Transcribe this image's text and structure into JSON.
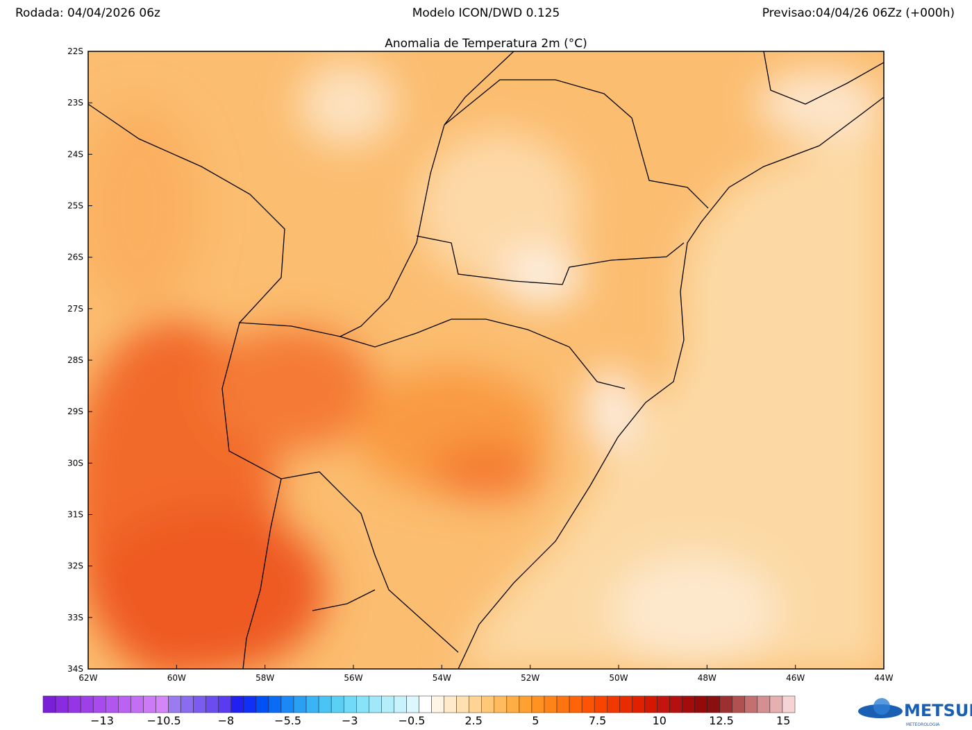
{
  "header": {
    "run": "Rodada: 04/04/2026 06z",
    "model": "Modelo ICON/DWD 0.125",
    "forecast": "Previsao:04/04/26 06Zz (+000h)"
  },
  "map": {
    "title": "Anomalia de Temperatura 2m (°C)",
    "lat_labels": [
      "22S",
      "23S",
      "24S",
      "25S",
      "26S",
      "27S",
      "28S",
      "29S",
      "30S",
      "31S",
      "32S",
      "33S",
      "34S"
    ],
    "lon_labels": [
      "62W",
      "60W",
      "58W",
      "56W",
      "54W",
      "52W",
      "50W",
      "48W",
      "46W",
      "44W"
    ]
  },
  "colorbar": {
    "colors": [
      "#7a1fd8",
      "#8a2be2",
      "#9435e6",
      "#9e40ea",
      "#a84bee",
      "#b256f1",
      "#bb62f3",
      "#c46ef5",
      "#cc7af7",
      "#d486f8",
      "#9a7cf0",
      "#8a6cf0",
      "#7a5cf0",
      "#6a4cf0",
      "#5a3cf0",
      "#2020f0",
      "#1030f5",
      "#0050f5",
      "#0a6cf5",
      "#1a88f5",
      "#2aa0f5",
      "#3ab4f5",
      "#4ac4f5",
      "#5ad0f5",
      "#70daf8",
      "#88e2f8",
      "#a0e8fa",
      "#b4eefb",
      "#c8f3fc",
      "#dcf7fd",
      "#ffffff",
      "#fff5e6",
      "#ffebcc",
      "#ffe0b0",
      "#ffd494",
      "#ffc878",
      "#ffbb5c",
      "#ffae44",
      "#ffa030",
      "#ff9220",
      "#ff8418",
      "#ff7410",
      "#ff6408",
      "#fc5404",
      "#f84400",
      "#f03800",
      "#e82c00",
      "#e02000",
      "#d41800",
      "#c41410",
      "#b41010",
      "#a40c0c",
      "#940a0a",
      "#8a1010",
      "#9c3030",
      "#b05050",
      "#c47070",
      "#d49090",
      "#e4b0b0",
      "#f4d4d4"
    ],
    "labels": [
      "−13",
      "−10.5",
      "−8",
      "−5.5",
      "−3",
      "−0.5",
      "2.5",
      "5",
      "7.5",
      "10",
      "12.5",
      "15"
    ]
  },
  "logo": {
    "name": "METSUL",
    "tagline": "METEOROLOGIA"
  }
}
